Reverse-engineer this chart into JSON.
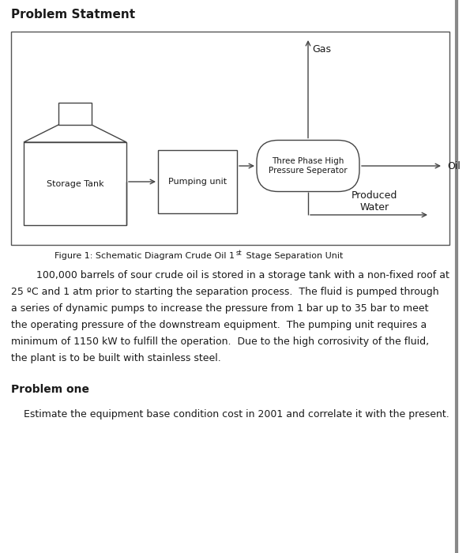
{
  "title": "Problem Statment",
  "bg_color": "#ffffff",
  "text_color": "#1a1a1a",
  "line_color": "#444444",
  "diagram": {
    "storage_tank_label": "Storage Tank",
    "pumping_unit_label": "Pumping unit",
    "separator_label": "Three Phase High\nPressure Seperator",
    "gas_label": "Gas",
    "oil_label": "Oil",
    "water_label": "Produced\nWater"
  },
  "caption_pre": "Figure 1: Schematic Diagram Crude Oil 1",
  "caption_sup": "st",
  "caption_post": " Stage Separation Unit",
  "body_lines": [
    "        100,000 barrels of sour crude oil is stored in a storage tank with a non-fixed roof at",
    "25 ºC and 1 atm prior to starting the separation process.  The fluid is pumped through",
    "a series of dynamic pumps to increase the pressure from 1 bar up to 35 bar to meet",
    "the operating pressure of the downstream equipment.  The pumping unit requires a",
    "minimum of 1150 kW to fulfill the operation.  Due to the high corrosivity of the fluid,",
    "the plant is to be built with stainless steel."
  ],
  "problem_one_title": "Problem one",
  "problem_one_text": "    Estimate the equipment base condition cost in 2001 and correlate it with the present."
}
